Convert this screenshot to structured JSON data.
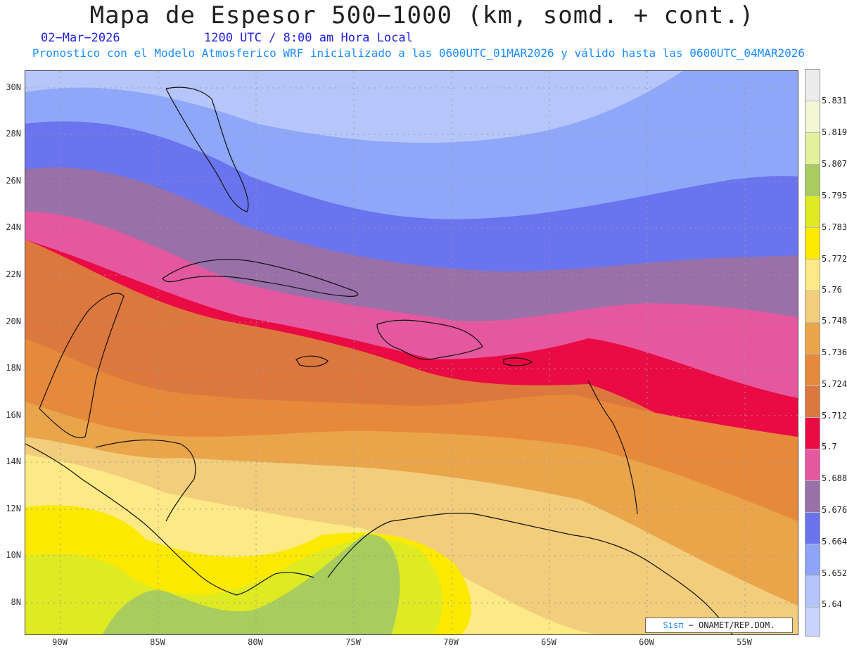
{
  "header": {
    "title": "Mapa de Espesor 500−1000 (km, somd. + cont.)",
    "date": "02−Mar−2026",
    "time": "1200 UTC / 8:00 am Hora Local",
    "forecast": "Pronostico con el Modelo Atmosferico WRF inicializado a las 0600UTC_01MAR2026 y válido hasta las  0600UTC_04MAR2026"
  },
  "axes": {
    "lat_labels": [
      "30N",
      "28N",
      "26N",
      "24N",
      "22N",
      "20N",
      "18N",
      "16N",
      "14N",
      "12N",
      "10N",
      "8N"
    ],
    "lon_labels": [
      "90W",
      "85W",
      "80W",
      "75W",
      "70W",
      "65W",
      "60W",
      "55W"
    ]
  },
  "colorbar": {
    "labels": [
      "5.831",
      "5.819",
      "5.807",
      "5.795",
      "5.783",
      "5.772",
      "5.76",
      "5.748",
      "5.736",
      "5.724",
      "5.712",
      "5.7",
      "5.688",
      "5.676",
      "5.664",
      "5.652",
      "5.64"
    ],
    "colors": [
      "#ececec",
      "#f3f7d4",
      "#e3f19a",
      "#a8cc5e",
      "#dfeb22",
      "#fbe900",
      "#fde985",
      "#f1cd7c",
      "#eaa54b",
      "#e6893a",
      "#dc783d",
      "#ea0a44",
      "#e5579e",
      "#9a70a8",
      "#6a72ee",
      "#8ea4f8",
      "#b4c5fb",
      "#c9d3fc"
    ]
  },
  "badge": {
    "sis": "Sisπ",
    "org": "− ONAMET/REP.DOM."
  },
  "map_colors": {
    "lavender": "#b6c6fb",
    "light_blue": "#8ea7f8",
    "blue": "#6a74ee",
    "purple": "#9a70a8",
    "pink": "#e5579e",
    "red": "#ea0a44",
    "dark_orange": "#dc783d",
    "orange": "#e6893a",
    "light_orange": "#eaa54b",
    "tan": "#f1cd7c",
    "pale_yellow": "#fde985",
    "yellow": "#fbe900",
    "lime": "#dfeb22",
    "green": "#a8cc5e",
    "land_line": "#111111",
    "grid_line": "#9a9a9a"
  }
}
